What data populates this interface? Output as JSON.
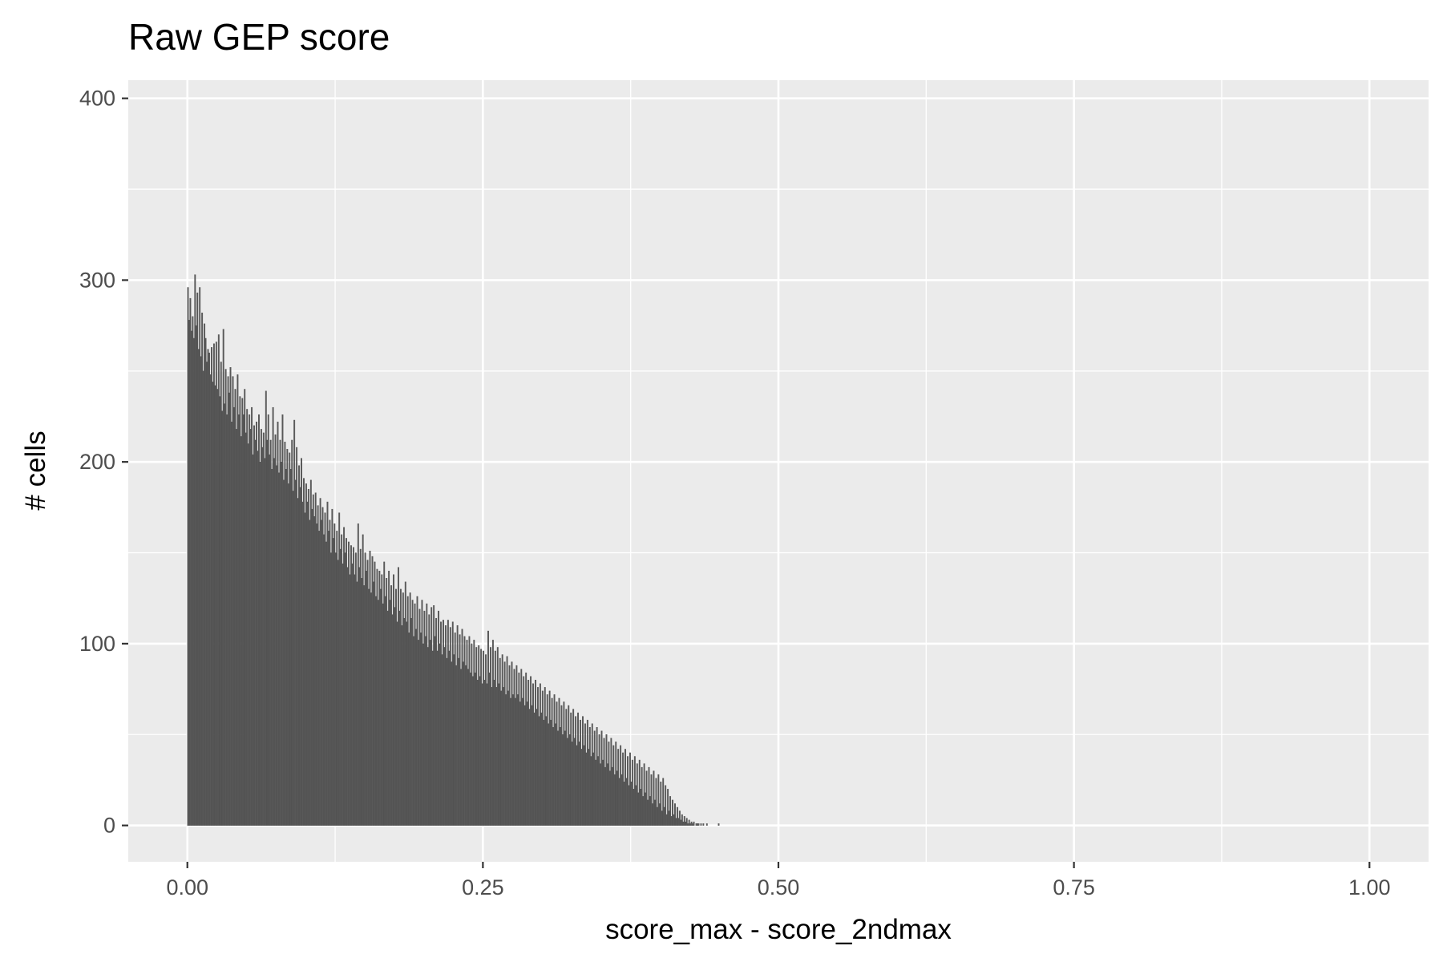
{
  "chart_data": {
    "type": "bar",
    "subtype": "histogram",
    "title": "Raw GEP score",
    "xlabel": "score_max - score_2ndmax",
    "ylabel": "# cells",
    "xlim": [
      -0.05,
      1.05
    ],
    "ylim": [
      -20,
      410
    ],
    "x_ticks": [
      0,
      0.25,
      0.5,
      0.75,
      1
    ],
    "x_tick_labels": [
      "0.00",
      "0.25",
      "0.50",
      "0.75",
      "1.00"
    ],
    "y_ticks": [
      0,
      100,
      200,
      300,
      400
    ],
    "y_tick_labels": [
      "0",
      "100",
      "200",
      "300",
      "400"
    ],
    "grid": true,
    "bin_width": 0.001,
    "bin_start": 0.0,
    "colors": {
      "panel": "#ebebeb",
      "grid": "#ffffff",
      "bar_fill": "#595959",
      "bar_outline": "#4d4d4d"
    },
    "values": [
      296,
      278,
      290,
      272,
      280,
      268,
      303,
      275,
      293,
      262,
      296,
      258,
      282,
      250,
      276,
      268,
      255,
      262,
      260,
      248,
      263,
      244,
      265,
      242,
      266,
      240,
      270,
      236,
      255,
      228,
      273,
      232,
      251,
      226,
      247,
      238,
      252,
      222,
      247,
      230,
      240,
      218,
      248,
      226,
      236,
      214,
      235,
      226,
      240,
      216,
      229,
      210,
      226,
      218,
      230,
      204,
      220,
      212,
      222,
      206,
      226,
      200,
      218,
      208,
      216,
      202,
      239,
      212,
      226,
      204,
      212,
      196,
      230,
      202,
      215,
      198,
      222,
      194,
      212,
      200,
      226,
      190,
      211,
      196,
      207,
      188,
      205,
      196,
      212,
      184,
      223,
      190,
      208,
      180,
      198,
      186,
      202,
      178,
      191,
      172,
      188,
      178,
      185,
      168,
      190,
      174,
      182,
      170,
      183,
      166,
      176,
      162,
      180,
      168,
      175,
      160,
      172,
      156,
      178,
      162,
      168,
      150,
      174,
      158,
      166,
      150,
      162,
      146,
      172,
      152,
      160,
      144,
      164,
      150,
      158,
      142,
      156,
      138,
      154,
      144,
      153,
      138,
      150,
      134,
      166,
      142,
      152,
      136,
      160,
      132,
      150,
      140,
      146,
      130,
      151,
      128,
      148,
      134,
      145,
      126,
      141,
      124,
      140,
      130,
      138,
      122,
      145,
      126,
      136,
      118,
      140,
      124,
      132,
      116,
      138,
      120,
      130,
      112,
      142,
      118,
      130,
      110,
      128,
      114,
      134,
      112,
      126,
      106,
      128,
      114,
      124,
      104,
      122,
      108,
      126,
      102,
      119,
      106,
      124,
      100,
      118,
      104,
      122,
      98,
      116,
      102,
      120,
      96,
      121,
      104,
      114,
      96,
      118,
      100,
      112,
      94,
      113,
      98,
      110,
      92,
      113,
      96,
      109,
      90,
      112,
      94,
      106,
      88,
      110,
      92,
      105,
      86,
      108,
      90,
      104,
      88,
      102,
      86,
      104,
      84,
      100,
      82,
      102,
      84,
      98,
      80,
      99,
      82,
      97,
      78,
      96,
      80,
      94,
      78,
      107,
      84,
      98,
      76,
      102,
      80,
      96,
      76,
      98,
      78,
      92,
      74,
      94,
      76,
      90,
      72,
      93,
      74,
      88,
      70,
      90,
      72,
      86,
      70,
      88,
      72,
      84,
      68,
      86,
      70,
      82,
      66,
      84,
      68,
      80,
      64,
      82,
      66,
      78,
      62,
      80,
      64,
      76,
      60,
      78,
      62,
      74,
      58,
      76,
      60,
      72,
      56,
      74,
      58,
      70,
      54,
      72,
      56,
      68,
      52,
      70,
      54,
      66,
      50,
      68,
      52,
      64,
      48,
      66,
      50,
      62,
      46,
      64,
      48,
      60,
      44,
      62,
      46,
      58,
      42,
      60,
      44,
      56,
      40,
      58,
      42,
      54,
      38,
      56,
      40,
      52,
      36,
      54,
      38,
      50,
      34,
      52,
      36,
      48,
      32,
      50,
      34,
      46,
      30,
      48,
      32,
      44,
      28,
      46,
      30,
      42,
      26,
      44,
      28,
      40,
      24,
      42,
      26,
      38,
      22,
      40,
      24,
      36,
      20,
      38,
      22,
      34,
      18,
      36,
      20,
      32,
      16,
      34,
      18,
      30,
      14,
      32,
      16,
      28,
      12,
      30,
      14,
      26,
      10,
      28,
      12,
      24,
      8,
      26,
      10,
      22,
      6,
      20,
      8,
      16,
      5,
      14,
      6,
      12,
      4,
      10,
      4,
      8,
      3,
      6,
      2,
      5,
      2,
      4,
      1,
      3,
      1,
      2,
      1,
      2,
      0,
      1,
      1,
      1,
      0,
      1,
      0,
      1,
      0,
      0,
      1,
      0,
      0,
      0,
      0,
      0,
      0,
      0,
      0,
      0,
      1
    ]
  }
}
